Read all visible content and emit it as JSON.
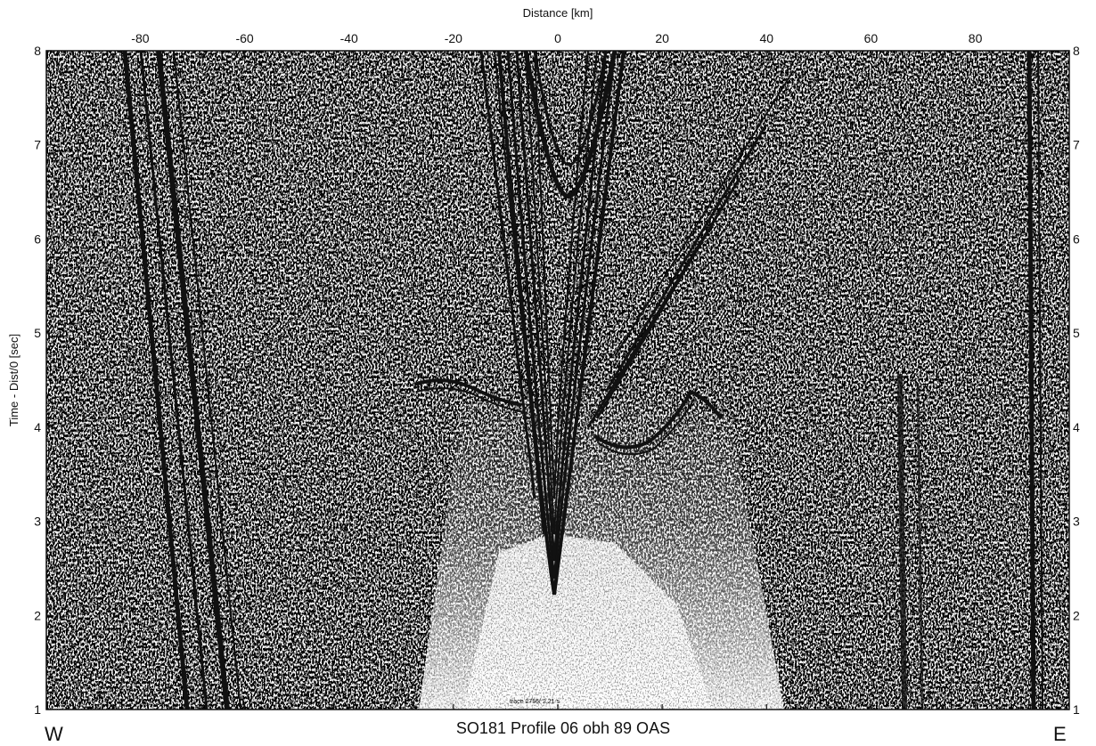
{
  "chart_data": {
    "type": "heatmap",
    "title": "SO181 Profile 06 obh 89 OAS",
    "xlabel": "Distance [km]",
    "ylabel": "Time - Dist/0 [sec]",
    "xlim": [
      -98,
      98
    ],
    "ylim": [
      1,
      8
    ],
    "x_ticks": [
      -80,
      -60,
      -40,
      -20,
      0,
      20,
      40,
      60,
      80
    ],
    "y_ticks": [
      1,
      2,
      3,
      4,
      5,
      6,
      7,
      8
    ],
    "grid": false,
    "legend": "none",
    "direction_left": "W",
    "direction_right": "E",
    "annotation": "trace 2756/ 2.21 s",
    "ink_color": "#111111",
    "paper_color": "#ffffff"
  }
}
